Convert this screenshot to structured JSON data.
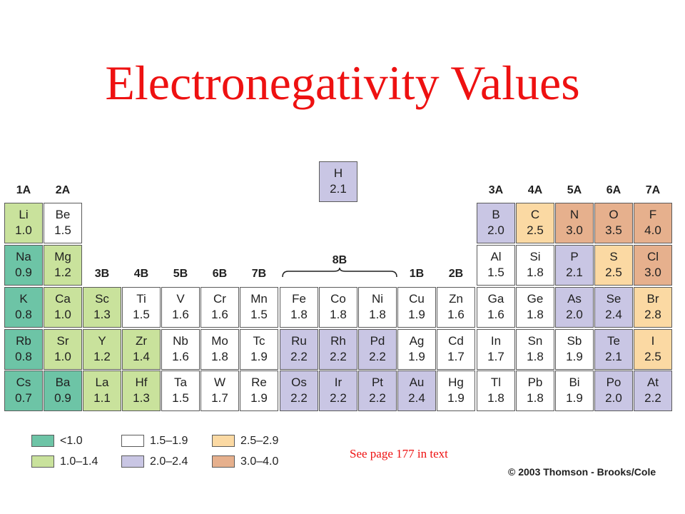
{
  "title": "Electronegativity Values",
  "colors": {
    "lt1": "#6dc4a6",
    "r10_14": "#c9e29c",
    "r15_19": "#ffffff",
    "r20_24": "#c9c6e4",
    "r25_29": "#fbd9a3",
    "r30_40": "#e6b08d"
  },
  "groups": [
    "1A",
    "2A",
    "3B",
    "4B",
    "5B",
    "6B",
    "7B",
    "1B",
    "2B",
    "3A",
    "4A",
    "5A",
    "6A",
    "7A"
  ],
  "group8b": "8B",
  "elements": [
    {
      "s": "H",
      "v": "2.1",
      "c": "r20_24"
    },
    {
      "s": "Li",
      "v": "1.0",
      "c": "r10_14"
    },
    {
      "s": "Be",
      "v": "1.5",
      "c": "r15_19"
    },
    {
      "s": "B",
      "v": "2.0",
      "c": "r20_24"
    },
    {
      "s": "C",
      "v": "2.5",
      "c": "r25_29"
    },
    {
      "s": "N",
      "v": "3.0",
      "c": "r30_40"
    },
    {
      "s": "O",
      "v": "3.5",
      "c": "r30_40"
    },
    {
      "s": "F",
      "v": "4.0",
      "c": "r30_40"
    },
    {
      "s": "Na",
      "v": "0.9",
      "c": "lt1"
    },
    {
      "s": "Mg",
      "v": "1.2",
      "c": "r10_14"
    },
    {
      "s": "Al",
      "v": "1.5",
      "c": "r15_19"
    },
    {
      "s": "Si",
      "v": "1.8",
      "c": "r15_19"
    },
    {
      "s": "P",
      "v": "2.1",
      "c": "r20_24"
    },
    {
      "s": "S",
      "v": "2.5",
      "c": "r25_29"
    },
    {
      "s": "Cl",
      "v": "3.0",
      "c": "r30_40"
    },
    {
      "s": "K",
      "v": "0.8",
      "c": "lt1"
    },
    {
      "s": "Ca",
      "v": "1.0",
      "c": "r10_14"
    },
    {
      "s": "Sc",
      "v": "1.3",
      "c": "r10_14"
    },
    {
      "s": "Ti",
      "v": "1.5",
      "c": "r15_19"
    },
    {
      "s": "V",
      "v": "1.6",
      "c": "r15_19"
    },
    {
      "s": "Cr",
      "v": "1.6",
      "c": "r15_19"
    },
    {
      "s": "Mn",
      "v": "1.5",
      "c": "r15_19"
    },
    {
      "s": "Fe",
      "v": "1.8",
      "c": "r15_19"
    },
    {
      "s": "Co",
      "v": "1.8",
      "c": "r15_19"
    },
    {
      "s": "Ni",
      "v": "1.8",
      "c": "r15_19"
    },
    {
      "s": "Cu",
      "v": "1.9",
      "c": "r15_19"
    },
    {
      "s": "Zn",
      "v": "1.6",
      "c": "r15_19"
    },
    {
      "s": "Ga",
      "v": "1.6",
      "c": "r15_19"
    },
    {
      "s": "Ge",
      "v": "1.8",
      "c": "r15_19"
    },
    {
      "s": "As",
      "v": "2.0",
      "c": "r20_24"
    },
    {
      "s": "Se",
      "v": "2.4",
      "c": "r20_24"
    },
    {
      "s": "Br",
      "v": "2.8",
      "c": "r25_29"
    },
    {
      "s": "Rb",
      "v": "0.8",
      "c": "lt1"
    },
    {
      "s": "Sr",
      "v": "1.0",
      "c": "r10_14"
    },
    {
      "s": "Y",
      "v": "1.2",
      "c": "r10_14"
    },
    {
      "s": "Zr",
      "v": "1.4",
      "c": "r10_14"
    },
    {
      "s": "Nb",
      "v": "1.6",
      "c": "r15_19"
    },
    {
      "s": "Mo",
      "v": "1.8",
      "c": "r15_19"
    },
    {
      "s": "Tc",
      "v": "1.9",
      "c": "r15_19"
    },
    {
      "s": "Ru",
      "v": "2.2",
      "c": "r20_24"
    },
    {
      "s": "Rh",
      "v": "2.2",
      "c": "r20_24"
    },
    {
      "s": "Pd",
      "v": "2.2",
      "c": "r20_24"
    },
    {
      "s": "Ag",
      "v": "1.9",
      "c": "r15_19"
    },
    {
      "s": "Cd",
      "v": "1.7",
      "c": "r15_19"
    },
    {
      "s": "In",
      "v": "1.7",
      "c": "r15_19"
    },
    {
      "s": "Sn",
      "v": "1.8",
      "c": "r15_19"
    },
    {
      "s": "Sb",
      "v": "1.9",
      "c": "r15_19"
    },
    {
      "s": "Te",
      "v": "2.1",
      "c": "r20_24"
    },
    {
      "s": "I",
      "v": "2.5",
      "c": "r25_29"
    },
    {
      "s": "Cs",
      "v": "0.7",
      "c": "lt1"
    },
    {
      "s": "Ba",
      "v": "0.9",
      "c": "lt1"
    },
    {
      "s": "La",
      "v": "1.1",
      "c": "r10_14"
    },
    {
      "s": "Hf",
      "v": "1.3",
      "c": "r10_14"
    },
    {
      "s": "Ta",
      "v": "1.5",
      "c": "r15_19"
    },
    {
      "s": "W",
      "v": "1.7",
      "c": "r15_19"
    },
    {
      "s": "Re",
      "v": "1.9",
      "c": "r15_19"
    },
    {
      "s": "Os",
      "v": "2.2",
      "c": "r20_24"
    },
    {
      "s": "Ir",
      "v": "2.2",
      "c": "r20_24"
    },
    {
      "s": "Pt",
      "v": "2.2",
      "c": "r20_24"
    },
    {
      "s": "Au",
      "v": "2.4",
      "c": "r20_24"
    },
    {
      "s": "Hg",
      "v": "1.9",
      "c": "r15_19"
    },
    {
      "s": "Tl",
      "v": "1.8",
      "c": "r15_19"
    },
    {
      "s": "Pb",
      "v": "1.8",
      "c": "r15_19"
    },
    {
      "s": "Bi",
      "v": "1.9",
      "c": "r15_19"
    },
    {
      "s": "Po",
      "v": "2.0",
      "c": "r20_24"
    },
    {
      "s": "At",
      "v": "2.2",
      "c": "r20_24"
    }
  ],
  "legend": [
    {
      "label": "<1.0",
      "c": "lt1"
    },
    {
      "label": "1.0–1.4",
      "c": "r10_14"
    },
    {
      "label": "1.5–1.9",
      "c": "r15_19"
    },
    {
      "label": "2.0–2.4",
      "c": "r20_24"
    },
    {
      "label": "2.5–2.9",
      "c": "r25_29"
    },
    {
      "label": "3.0–4.0",
      "c": "r30_40"
    }
  ],
  "note": "See page 177 in text",
  "copyright": "© 2003 Thomson - Brooks/Cole"
}
